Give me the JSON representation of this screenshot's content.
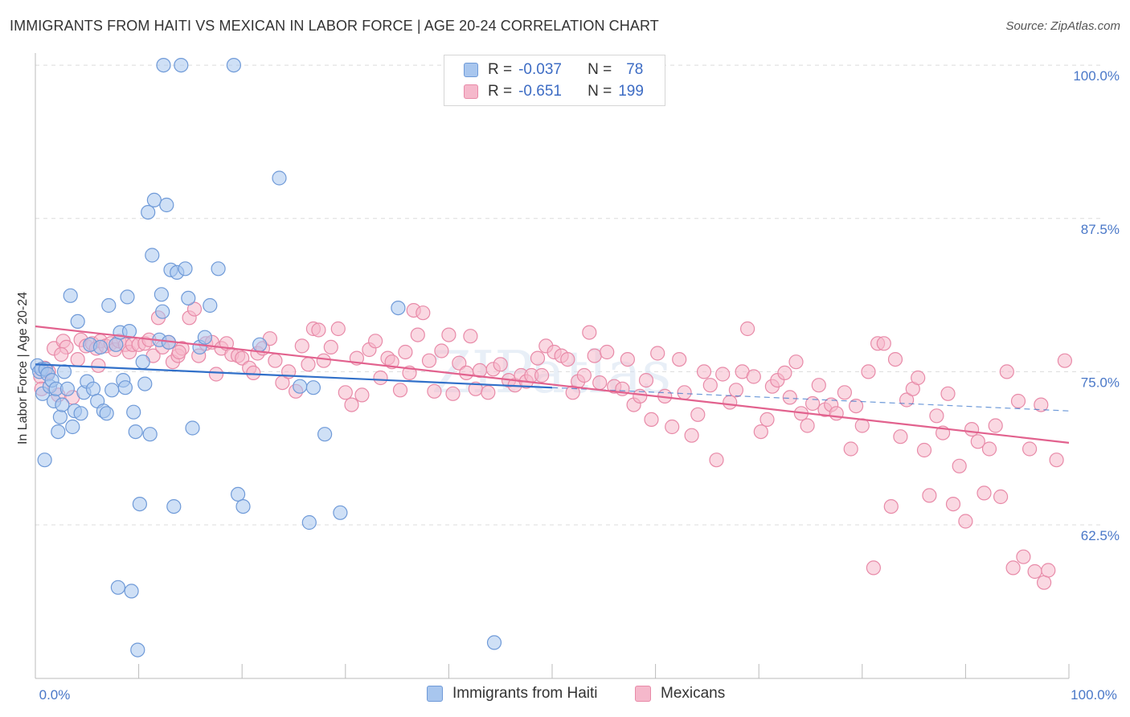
{
  "title": "IMMIGRANTS FROM HAITI VS MEXICAN IN LABOR FORCE | AGE 20-24 CORRELATION CHART",
  "source": "Source: ZipAtlas.com",
  "watermark": "ZIPatlas",
  "colors": {
    "blue_fill": "#a8c6ee",
    "blue_stroke": "#6f9ad8",
    "blue_line": "#3170c9",
    "pink_fill": "#f5b8cb",
    "pink_stroke": "#e88aa8",
    "pink_line": "#e2628e",
    "axis_text": "#4a78c8"
  },
  "legend": {
    "row1": {
      "r_label": "R =",
      "r_value": "-0.037",
      "n_label": "N =",
      "n_value": "78"
    },
    "row2": {
      "r_label": "R =",
      "r_value": "-0.651",
      "n_label": "N =",
      "n_value": "199"
    }
  },
  "bottom_legend": {
    "series1": "Immigrants from Haiti",
    "series2": "Mexicans"
  },
  "chart_data": {
    "type": "scatter",
    "title": "IMMIGRANTS FROM HAITI VS MEXICAN IN LABOR FORCE | AGE 20-24 CORRELATION CHART",
    "xlabel": "",
    "ylabel": "In Labor Force | Age 20-24",
    "xlim": [
      0,
      100
    ],
    "ylim": [
      52,
      101
    ],
    "x_tick_labels": [
      "0.0%",
      "100.0%"
    ],
    "y_ticks": [
      62.5,
      75.0,
      87.5,
      100.0
    ],
    "y_tick_labels": [
      "62.5%",
      "75.0%",
      "87.5%",
      "100.0%"
    ],
    "grid": true,
    "series": [
      {
        "name": "Immigrants from Haiti",
        "color": "#a8c6ee",
        "trend": {
          "x0": 0,
          "y0": 75.6,
          "x1": 50,
          "y1": 73.7,
          "dashed_to_x": 100,
          "dashed_to_y": 71.8
        },
        "points": [
          [
            0.2,
            75.5
          ],
          [
            0.4,
            75.0
          ],
          [
            0.6,
            75.2
          ],
          [
            0.7,
            73.2
          ],
          [
            0.9,
            67.8
          ],
          [
            1.0,
            75.2
          ],
          [
            1.2,
            74.8
          ],
          [
            1.4,
            73.8
          ],
          [
            1.6,
            74.3
          ],
          [
            1.8,
            72.6
          ],
          [
            2.0,
            73.6
          ],
          [
            2.2,
            70.1
          ],
          [
            2.4,
            71.3
          ],
          [
            2.6,
            72.3
          ],
          [
            2.8,
            75.0
          ],
          [
            3.1,
            73.6
          ],
          [
            3.4,
            81.2
          ],
          [
            3.6,
            70.5
          ],
          [
            3.8,
            71.8
          ],
          [
            4.1,
            79.1
          ],
          [
            4.4,
            71.6
          ],
          [
            4.7,
            73.3
          ],
          [
            5.0,
            74.2
          ],
          [
            5.3,
            77.2
          ],
          [
            5.6,
            73.6
          ],
          [
            6.0,
            72.6
          ],
          [
            6.3,
            77.0
          ],
          [
            6.6,
            71.8
          ],
          [
            6.9,
            71.6
          ],
          [
            7.1,
            80.4
          ],
          [
            7.4,
            73.5
          ],
          [
            7.8,
            77.2
          ],
          [
            8.0,
            57.4
          ],
          [
            8.2,
            78.2
          ],
          [
            8.5,
            74.3
          ],
          [
            8.7,
            73.7
          ],
          [
            8.9,
            81.1
          ],
          [
            9.1,
            78.3
          ],
          [
            9.3,
            57.1
          ],
          [
            9.5,
            71.7
          ],
          [
            9.7,
            70.1
          ],
          [
            9.9,
            52.3
          ],
          [
            10.1,
            64.2
          ],
          [
            10.4,
            75.8
          ],
          [
            10.6,
            74.0
          ],
          [
            10.9,
            88.0
          ],
          [
            11.1,
            69.9
          ],
          [
            11.3,
            84.5
          ],
          [
            11.5,
            89.0
          ],
          [
            12.0,
            77.6
          ],
          [
            12.2,
            81.3
          ],
          [
            12.3,
            79.9
          ],
          [
            12.4,
            100.0
          ],
          [
            12.7,
            88.6
          ],
          [
            12.9,
            77.4
          ],
          [
            13.1,
            83.3
          ],
          [
            13.4,
            64.0
          ],
          [
            13.7,
            83.1
          ],
          [
            14.1,
            100.0
          ],
          [
            14.5,
            83.4
          ],
          [
            14.8,
            81.0
          ],
          [
            15.2,
            70.4
          ],
          [
            15.9,
            77.0
          ],
          [
            16.4,
            77.8
          ],
          [
            16.9,
            80.4
          ],
          [
            17.7,
            83.4
          ],
          [
            19.2,
            100.0
          ],
          [
            19.6,
            65.0
          ],
          [
            20.1,
            64.0
          ],
          [
            21.7,
            77.2
          ],
          [
            23.6,
            90.8
          ],
          [
            25.6,
            73.8
          ],
          [
            26.5,
            62.7
          ],
          [
            26.9,
            73.7
          ],
          [
            28.0,
            69.9
          ],
          [
            29.5,
            63.5
          ],
          [
            35.1,
            80.2
          ],
          [
            44.4,
            52.9
          ]
        ]
      },
      {
        "name": "Mexicans",
        "color": "#f5b8cb",
        "trend": {
          "x0": 0,
          "y0": 78.7,
          "x1": 100,
          "y1": 69.2
        },
        "points": [
          [
            0.5,
            74.6
          ],
          [
            0.9,
            75.3
          ],
          [
            1.3,
            75.0
          ],
          [
            1.8,
            76.9
          ],
          [
            2.2,
            73.1
          ],
          [
            2.7,
            77.5
          ],
          [
            3.0,
            77.0
          ],
          [
            3.6,
            72.9
          ],
          [
            4.1,
            76.0
          ],
          [
            4.4,
            77.6
          ],
          [
            4.9,
            77.1
          ],
          [
            5.5,
            77.3
          ],
          [
            5.9,
            76.9
          ],
          [
            6.3,
            77.5
          ],
          [
            6.8,
            77.1
          ],
          [
            7.3,
            77.3
          ],
          [
            7.7,
            76.8
          ],
          [
            8.1,
            77.5
          ],
          [
            8.7,
            77.2
          ],
          [
            9.1,
            76.6
          ],
          [
            9.4,
            77.2
          ],
          [
            10.0,
            77.2
          ],
          [
            10.6,
            77.3
          ],
          [
            11.0,
            77.6
          ],
          [
            11.4,
            76.3
          ],
          [
            11.9,
            79.4
          ],
          [
            12.3,
            77.0
          ],
          [
            12.9,
            77.4
          ],
          [
            13.3,
            75.8
          ],
          [
            13.8,
            76.3
          ],
          [
            14.2,
            76.9
          ],
          [
            14.9,
            79.4
          ],
          [
            15.4,
            80.1
          ],
          [
            15.8,
            76.3
          ],
          [
            16.5,
            77.3
          ],
          [
            17.1,
            77.4
          ],
          [
            17.5,
            74.8
          ],
          [
            18.0,
            76.9
          ],
          [
            18.5,
            77.3
          ],
          [
            19.0,
            76.4
          ],
          [
            19.6,
            76.3
          ],
          [
            20.0,
            76.1
          ],
          [
            20.7,
            75.3
          ],
          [
            21.1,
            74.9
          ],
          [
            21.5,
            76.5
          ],
          [
            22.0,
            76.9
          ],
          [
            22.7,
            77.7
          ],
          [
            23.2,
            75.9
          ],
          [
            23.9,
            74.1
          ],
          [
            24.5,
            75.0
          ],
          [
            25.2,
            73.4
          ],
          [
            25.8,
            77.1
          ],
          [
            26.4,
            75.6
          ],
          [
            26.9,
            78.5
          ],
          [
            27.4,
            78.4
          ],
          [
            27.9,
            75.9
          ],
          [
            28.6,
            77.0
          ],
          [
            29.3,
            78.5
          ],
          [
            30.0,
            73.3
          ],
          [
            30.6,
            72.3
          ],
          [
            31.1,
            76.1
          ],
          [
            31.6,
            73.1
          ],
          [
            32.3,
            76.8
          ],
          [
            32.9,
            77.5
          ],
          [
            33.4,
            74.5
          ],
          [
            34.1,
            76.1
          ],
          [
            34.5,
            75.8
          ],
          [
            35.3,
            73.5
          ],
          [
            35.8,
            76.6
          ],
          [
            36.2,
            74.9
          ],
          [
            36.6,
            80.0
          ],
          [
            37.0,
            78.0
          ],
          [
            37.5,
            79.8
          ],
          [
            38.1,
            75.9
          ],
          [
            38.6,
            73.4
          ],
          [
            39.3,
            76.7
          ],
          [
            40.0,
            78.0
          ],
          [
            40.4,
            73.2
          ],
          [
            41.0,
            75.7
          ],
          [
            41.7,
            74.9
          ],
          [
            42.1,
            77.9
          ],
          [
            42.6,
            73.6
          ],
          [
            43.0,
            75.1
          ],
          [
            43.8,
            73.3
          ],
          [
            44.3,
            75.2
          ],
          [
            45.0,
            75.6
          ],
          [
            45.8,
            74.3
          ],
          [
            46.4,
            73.9
          ],
          [
            47.0,
            74.7
          ],
          [
            47.5,
            74.2
          ],
          [
            48.0,
            74.7
          ],
          [
            48.6,
            76.1
          ],
          [
            49.0,
            74.7
          ],
          [
            49.4,
            77.1
          ],
          [
            50.2,
            76.6
          ],
          [
            50.9,
            76.3
          ],
          [
            51.5,
            76.0
          ],
          [
            52.0,
            73.3
          ],
          [
            52.5,
            74.2
          ],
          [
            53.1,
            74.7
          ],
          [
            53.6,
            78.2
          ],
          [
            54.1,
            76.3
          ],
          [
            54.6,
            74.1
          ],
          [
            55.3,
            76.6
          ],
          [
            56.0,
            73.8
          ],
          [
            56.8,
            73.6
          ],
          [
            57.3,
            76.0
          ],
          [
            57.9,
            72.3
          ],
          [
            58.5,
            73.0
          ],
          [
            59.1,
            74.3
          ],
          [
            59.6,
            71.1
          ],
          [
            60.2,
            76.5
          ],
          [
            60.9,
            73.0
          ],
          [
            61.6,
            70.5
          ],
          [
            62.3,
            76.0
          ],
          [
            62.8,
            73.3
          ],
          [
            63.5,
            69.8
          ],
          [
            64.1,
            71.5
          ],
          [
            64.7,
            75.0
          ],
          [
            65.3,
            73.9
          ],
          [
            65.9,
            67.8
          ],
          [
            66.5,
            74.8
          ],
          [
            67.2,
            72.5
          ],
          [
            67.8,
            73.5
          ],
          [
            68.4,
            75.0
          ],
          [
            68.9,
            78.5
          ],
          [
            69.5,
            74.6
          ],
          [
            70.2,
            70.1
          ],
          [
            70.8,
            71.1
          ],
          [
            71.3,
            73.8
          ],
          [
            71.8,
            74.3
          ],
          [
            72.5,
            74.9
          ],
          [
            73.0,
            72.9
          ],
          [
            73.6,
            75.8
          ],
          [
            74.1,
            71.6
          ],
          [
            74.7,
            70.6
          ],
          [
            75.2,
            72.4
          ],
          [
            75.8,
            73.9
          ],
          [
            76.4,
            71.9
          ],
          [
            77.0,
            72.3
          ],
          [
            77.5,
            71.6
          ],
          [
            78.3,
            73.3
          ],
          [
            78.9,
            68.7
          ],
          [
            79.4,
            72.2
          ],
          [
            80.0,
            70.6
          ],
          [
            80.6,
            75.0
          ],
          [
            81.1,
            59.0
          ],
          [
            81.5,
            77.3
          ],
          [
            82.1,
            77.3
          ],
          [
            82.8,
            64.0
          ],
          [
            83.2,
            76.0
          ],
          [
            83.7,
            69.7
          ],
          [
            84.3,
            72.7
          ],
          [
            84.9,
            73.6
          ],
          [
            85.4,
            74.5
          ],
          [
            86.0,
            68.6
          ],
          [
            86.5,
            64.9
          ],
          [
            87.2,
            71.4
          ],
          [
            87.8,
            70.0
          ],
          [
            88.3,
            73.2
          ],
          [
            88.8,
            64.2
          ],
          [
            89.4,
            67.3
          ],
          [
            90.0,
            62.8
          ],
          [
            90.6,
            70.3
          ],
          [
            91.2,
            69.3
          ],
          [
            91.8,
            65.1
          ],
          [
            92.3,
            68.7
          ],
          [
            92.9,
            70.6
          ],
          [
            93.4,
            64.8
          ],
          [
            94.0,
            75.0
          ],
          [
            94.6,
            59.0
          ],
          [
            95.1,
            72.6
          ],
          [
            95.6,
            59.9
          ],
          [
            96.2,
            68.7
          ],
          [
            96.7,
            58.7
          ],
          [
            97.3,
            72.3
          ],
          [
            97.6,
            57.8
          ],
          [
            98.0,
            58.8
          ],
          [
            98.8,
            67.8
          ],
          [
            99.6,
            75.9
          ],
          [
            0.6,
            73.6
          ],
          [
            2.5,
            76.4
          ],
          [
            6.1,
            75.5
          ],
          [
            13.9,
            76.6
          ]
        ]
      }
    ]
  }
}
